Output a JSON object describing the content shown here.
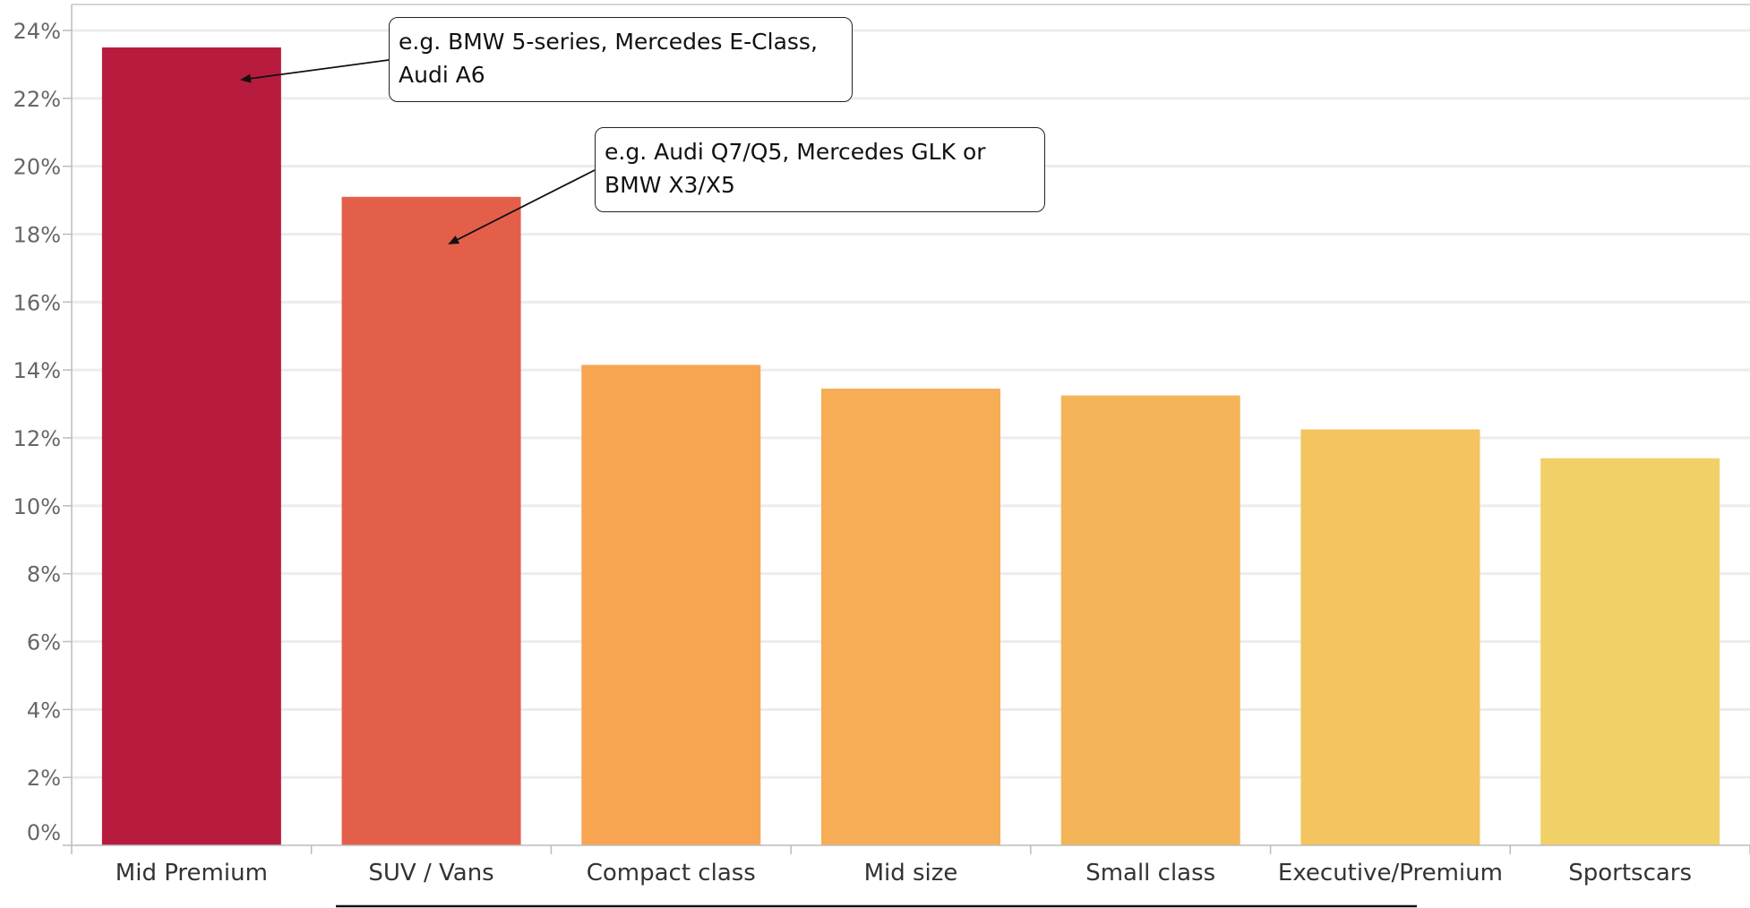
{
  "chart_data": {
    "type": "bar",
    "title": "",
    "xlabel": "",
    "ylabel": "",
    "categories": [
      "Mid Premium",
      "SUV / Vans",
      "Compact class",
      "Mid size",
      "Small class",
      "Executive/Premium",
      "Sportscars"
    ],
    "values": [
      23.5,
      19.1,
      14.15,
      13.45,
      13.25,
      12.25,
      11.4
    ],
    "ylim": [
      0,
      24
    ],
    "yticks": [
      0,
      2,
      4,
      6,
      8,
      10,
      12,
      14,
      16,
      18,
      20,
      22,
      24
    ],
    "tick_format_suffix": "%",
    "grid": true,
    "bar_colors": [
      "#b71c3e",
      "#e45f4a",
      "#f8a552",
      "#f6ad55",
      "#f4b558",
      "#f3c45f",
      "#f2d068"
    ],
    "annotations": [
      {
        "category": "Mid Premium",
        "text_lines": [
          "e.g. BMW 5-series, Mercedes E-Class,",
          "Audi A6"
        ]
      },
      {
        "category": "SUV / Vans",
        "text_lines": [
          "e.g. Audi Q7/Q5, Mercedes GLK or",
          "BMW X3/X5"
        ]
      }
    ]
  }
}
